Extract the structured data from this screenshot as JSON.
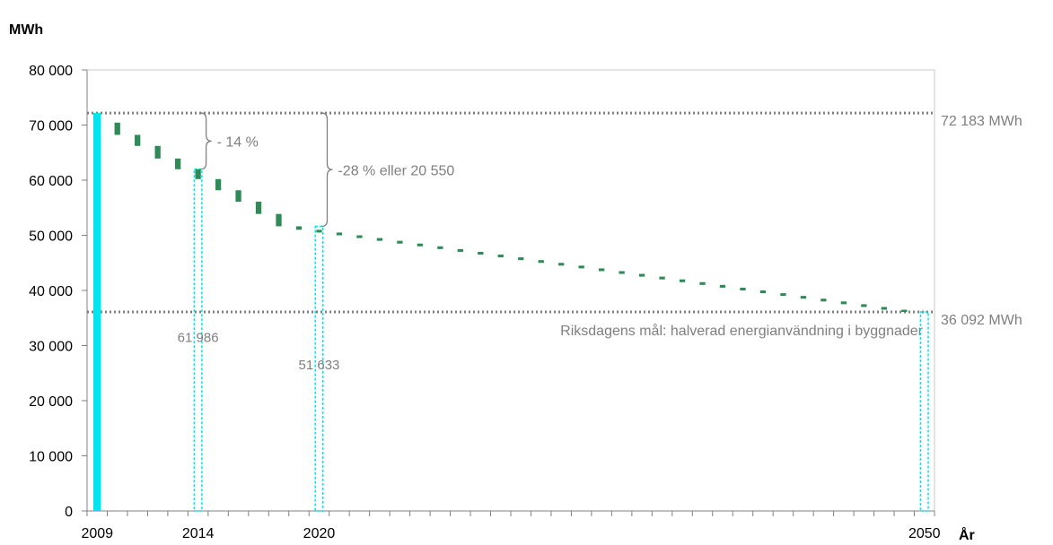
{
  "chart_data": {
    "type": "bar",
    "ylabel": "MWh",
    "xlabel": "År",
    "ylim": [
      0,
      80000
    ],
    "yticks": [
      0,
      10000,
      20000,
      30000,
      40000,
      50000,
      60000,
      70000,
      80000
    ],
    "ytick_labels": [
      "0",
      "10 000",
      "20 000",
      "30 000",
      "40 000",
      "50 000",
      "60 000",
      "70 000",
      "80 000"
    ],
    "xlim": [
      2009,
      2050
    ],
    "xtick_labels": [
      "2009",
      "2014",
      "2020",
      "2050"
    ],
    "xtick_values": [
      2009,
      2014,
      2020,
      2050
    ],
    "grid": false,
    "legend": "none",
    "colors": {
      "baseline_bar": "#00e5ee",
      "step_marks": "#2e8b57",
      "guide_lines": "#00e5ee",
      "reference_lines": "#808080",
      "annotation_text": "#7f7f7f"
    },
    "baseline_bar": {
      "year": 2009,
      "value": 72183
    },
    "steps": [
      {
        "year": 2010,
        "top": 70437,
        "bottom": 68219
      },
      {
        "year": 2011,
        "top": 68219,
        "bottom": 66218
      },
      {
        "year": 2012,
        "top": 66218,
        "bottom": 63922
      },
      {
        "year": 2013,
        "top": 63922,
        "bottom": 61986
      },
      {
        "year": 2014,
        "top": 61986,
        "bottom": 60197
      },
      {
        "year": 2015,
        "top": 60197,
        "bottom": 58170
      },
      {
        "year": 2016,
        "top": 58170,
        "bottom": 56092
      },
      {
        "year": 2017,
        "top": 56092,
        "bottom": 53873
      },
      {
        "year": 2018,
        "top": 53873,
        "bottom": 51633
      },
      {
        "year": 2019,
        "top": 51633,
        "bottom": 51000
      },
      {
        "year": 2020,
        "top": 51000,
        "bottom": 50500
      },
      {
        "year": 2021,
        "top": 50500,
        "bottom": 50000
      },
      {
        "year": 2022,
        "top": 50000,
        "bottom": 49500
      },
      {
        "year": 2023,
        "top": 49500,
        "bottom": 49000
      },
      {
        "year": 2024,
        "top": 49000,
        "bottom": 48500
      },
      {
        "year": 2025,
        "top": 48500,
        "bottom": 48000
      },
      {
        "year": 2026,
        "top": 48000,
        "bottom": 47500
      },
      {
        "year": 2027,
        "top": 47500,
        "bottom": 47000
      },
      {
        "year": 2028,
        "top": 47000,
        "bottom": 46500
      },
      {
        "year": 2029,
        "top": 46500,
        "bottom": 46000
      },
      {
        "year": 2030,
        "top": 46000,
        "bottom": 45500
      },
      {
        "year": 2031,
        "top": 45500,
        "bottom": 45000
      },
      {
        "year": 2032,
        "top": 45000,
        "bottom": 44500
      },
      {
        "year": 2033,
        "top": 44500,
        "bottom": 44000
      },
      {
        "year": 2034,
        "top": 44000,
        "bottom": 43500
      },
      {
        "year": 2035,
        "top": 43500,
        "bottom": 43000
      },
      {
        "year": 2036,
        "top": 43000,
        "bottom": 42500
      },
      {
        "year": 2037,
        "top": 42500,
        "bottom": 42000
      },
      {
        "year": 2038,
        "top": 42000,
        "bottom": 41500
      },
      {
        "year": 2039,
        "top": 41500,
        "bottom": 41000
      },
      {
        "year": 2040,
        "top": 41000,
        "bottom": 40500
      },
      {
        "year": 2041,
        "top": 40500,
        "bottom": 40000
      },
      {
        "year": 2042,
        "top": 40000,
        "bottom": 39500
      },
      {
        "year": 2043,
        "top": 39500,
        "bottom": 39000
      },
      {
        "year": 2044,
        "top": 39000,
        "bottom": 38500
      },
      {
        "year": 2045,
        "top": 38500,
        "bottom": 38000
      },
      {
        "year": 2046,
        "top": 38000,
        "bottom": 37500
      },
      {
        "year": 2047,
        "top": 37500,
        "bottom": 37000
      },
      {
        "year": 2048,
        "top": 37000,
        "bottom": 36500
      },
      {
        "year": 2049,
        "top": 36500,
        "bottom": 36092
      }
    ],
    "guide_bars": [
      {
        "year": 2014,
        "value": 61986,
        "label": "61 986",
        "label_value": 31500
      },
      {
        "year": 2020,
        "value": 51633,
        "label": "51 633",
        "label_value": 26500
      },
      {
        "year": 2050,
        "value": 36092
      }
    ],
    "reference_lines": [
      {
        "value": 72183,
        "label": "72 183 MWh"
      },
      {
        "value": 36092,
        "label": "36 092 MWh",
        "caption": "Riksdagens mål: halverad energianvändning i byggnader"
      }
    ],
    "braces": [
      {
        "from": 72183,
        "to": 61986,
        "year": 2014,
        "label": "- 14 %"
      },
      {
        "from": 72183,
        "to": 51633,
        "year": 2020,
        "label": "-28 % eller 20 550"
      }
    ]
  }
}
